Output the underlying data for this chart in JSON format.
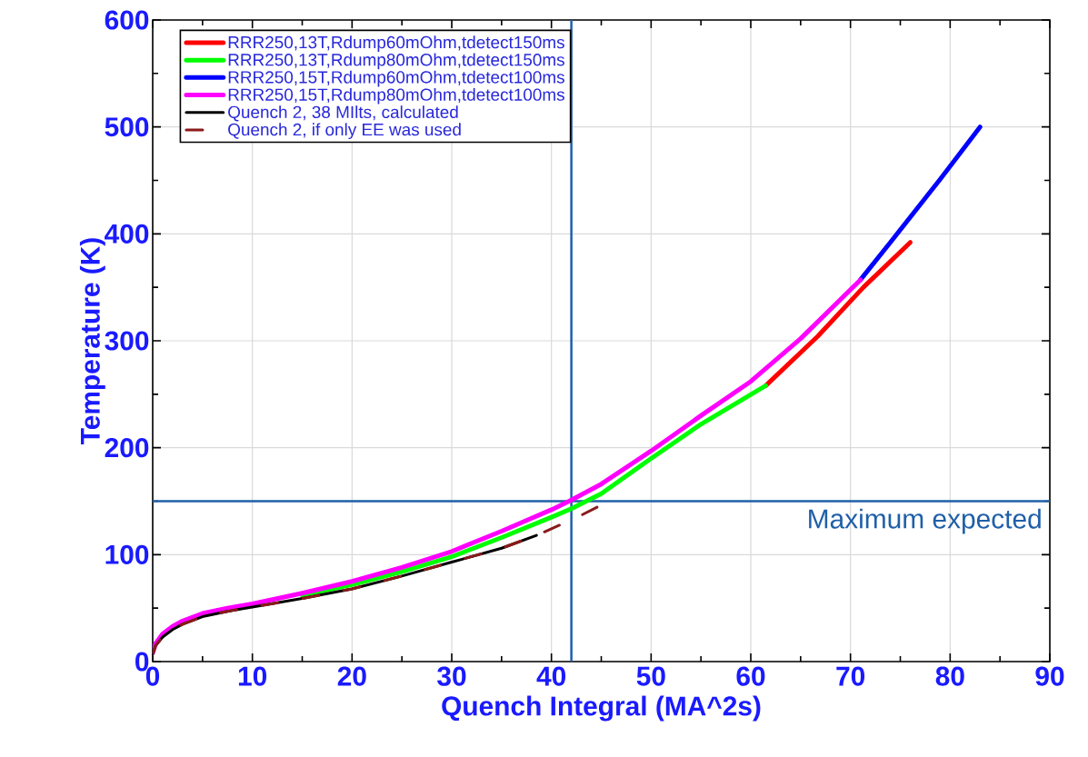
{
  "chart_data": {
    "type": "line",
    "xlabel": "Quench Integral (MA^2s)",
    "ylabel": "Temperature (K)",
    "xlim": [
      0,
      90
    ],
    "ylim": [
      0,
      600
    ],
    "xticks": [
      0,
      10,
      20,
      30,
      40,
      50,
      60,
      70,
      80,
      90
    ],
    "yticks": [
      0,
      100,
      200,
      300,
      400,
      500,
      600
    ],
    "grid": true,
    "legend": "top left",
    "series": [
      {
        "name": "RRR250,13T,Rdump60mOhm,tdetect150ms",
        "color": "#ff0000",
        "x": [
          61.5,
          66.7,
          71.3,
          76
        ],
        "values": [
          258,
          304,
          350,
          392
        ]
      },
      {
        "name": "RRR250,13T,Rdump80mOhm,tdetect150ms",
        "color": "#00ff00",
        "x": [
          15,
          20,
          25,
          30,
          35,
          40,
          42,
          45,
          50,
          55,
          61.5
        ],
        "values": [
          62,
          72,
          84,
          98,
          116,
          135,
          143,
          157,
          190,
          222,
          258
        ]
      },
      {
        "name": "RRR250,15T,Rdump60mOhm,tdetect100ms",
        "color": "#0000ff",
        "x": [
          71,
          74,
          79,
          83
        ],
        "values": [
          357,
          392,
          451,
          500
        ]
      },
      {
        "name": "RRR250,15T,Rdump80mOhm,tdetect100ms",
        "color": "#ff00ff",
        "x": [
          0,
          0.3,
          1,
          2,
          3,
          5,
          7.5,
          10,
          15,
          20,
          25,
          30,
          35,
          40,
          42,
          45,
          50,
          55,
          60,
          65,
          71
        ],
        "values": [
          8,
          17,
          26,
          33,
          38,
          45,
          50,
          54,
          64,
          75,
          88,
          103,
          122,
          142,
          151,
          166,
          197,
          230,
          262,
          302,
          357
        ]
      },
      {
        "name": "Quench 2, 38 MIlts, calculated",
        "color": "#000000",
        "x": [
          0,
          0.3,
          1,
          2,
          3,
          5,
          7.5,
          10,
          15,
          20,
          25,
          30,
          35,
          38.5
        ],
        "values": [
          7,
          15,
          23,
          30,
          35,
          42,
          47,
          51,
          59,
          68,
          80,
          93,
          106,
          118
        ]
      },
      {
        "name": "Quench 2, if only EE was used",
        "color": "#8b1a1a",
        "line_style": "dashed",
        "x": [
          0,
          0.3,
          1,
          2,
          3,
          5,
          7.5,
          10,
          15,
          20,
          25,
          30,
          35,
          38.5,
          42.6,
          44.7
        ],
        "values": [
          7,
          15,
          23,
          30,
          35,
          42,
          47,
          51,
          59,
          68,
          80,
          93,
          106,
          118,
          135,
          145
        ]
      }
    ],
    "ref_lines": [
      {
        "axis": "y",
        "value": 150,
        "label": "Maximum expected",
        "color": "#1f5fa8"
      },
      {
        "axis": "x",
        "value": 42,
        "color": "#1f5fa8"
      }
    ]
  }
}
